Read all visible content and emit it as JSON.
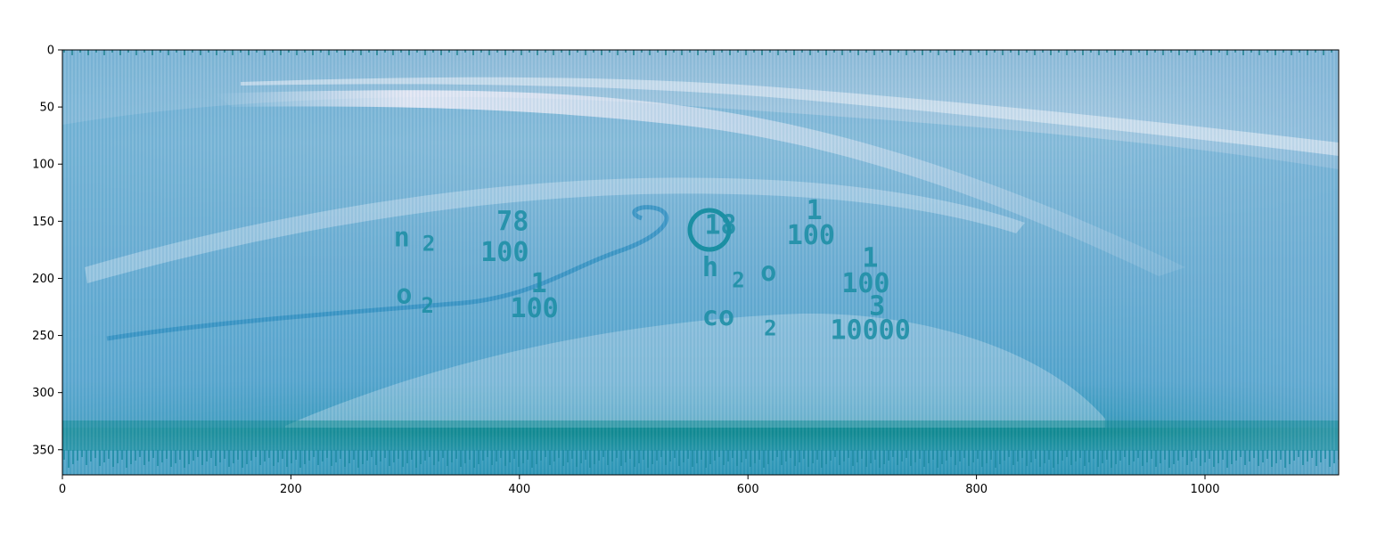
{
  "chart_data": {
    "type": "heatmap",
    "title": "",
    "xlabel": "",
    "ylabel": "",
    "xlim": [
      0,
      1117
    ],
    "ylim": [
      372,
      0
    ],
    "xticks": [
      0,
      200,
      400,
      600,
      800,
      1000
    ],
    "yticks": [
      0,
      50,
      100,
      150,
      200,
      250,
      300,
      350
    ],
    "grid": false,
    "legend": "none",
    "colormap": "PuBuGn",
    "colors": {
      "dark": "#0b7f86",
      "mid": "#3a9cc8",
      "light": "#9fc2dd",
      "pale": "#eeeaf6"
    },
    "image_text": [
      {
        "text": "n",
        "x": 290,
        "y": 172,
        "size": "large"
      },
      {
        "text": "2",
        "x": 315,
        "y": 176,
        "size": "small"
      },
      {
        "text": "78",
        "x": 380,
        "y": 158,
        "size": "large"
      },
      {
        "text": "100",
        "x": 366,
        "y": 185,
        "size": "large"
      },
      {
        "text": "o",
        "x": 292,
        "y": 222,
        "size": "large"
      },
      {
        "text": "2",
        "x": 314,
        "y": 230,
        "size": "small"
      },
      {
        "text": "1",
        "x": 410,
        "y": 212,
        "size": "large"
      },
      {
        "text": "100",
        "x": 392,
        "y": 234,
        "size": "large"
      },
      {
        "text": "18",
        "x": 562,
        "y": 161,
        "size": "large"
      },
      {
        "text": "1",
        "x": 651,
        "y": 148,
        "size": "large"
      },
      {
        "text": "100",
        "x": 634,
        "y": 170,
        "size": "large"
      },
      {
        "text": "h",
        "x": 560,
        "y": 198,
        "size": "large"
      },
      {
        "text": "2",
        "x": 586,
        "y": 208,
        "size": "small"
      },
      {
        "text": "o",
        "x": 611,
        "y": 202,
        "size": "large"
      },
      {
        "text": "1",
        "x": 700,
        "y": 190,
        "size": "large"
      },
      {
        "text": "100",
        "x": 682,
        "y": 212,
        "size": "large"
      },
      {
        "text": "co",
        "x": 560,
        "y": 241,
        "size": "large"
      },
      {
        "text": "2",
        "x": 614,
        "y": 250,
        "size": "small"
      },
      {
        "text": "3",
        "x": 706,
        "y": 232,
        "size": "large"
      },
      {
        "text": "10000",
        "x": 672,
        "y": 253,
        "size": "large"
      }
    ]
  }
}
